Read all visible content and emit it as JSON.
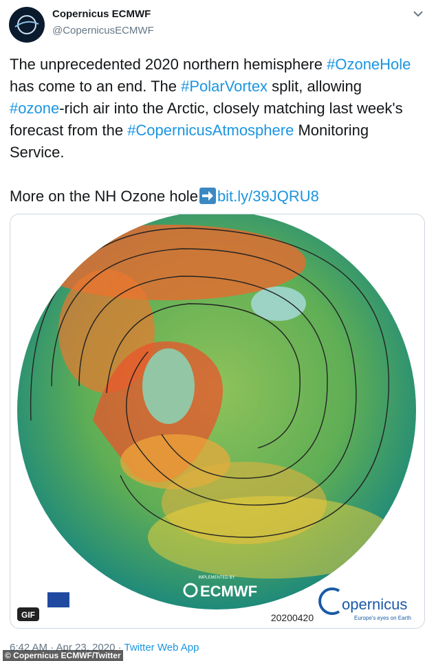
{
  "author": {
    "name": "Copernicus ECMWF",
    "handle": "@CopernicusECMWF"
  },
  "tweet": {
    "segments": [
      {
        "text": "The unprecedented 2020 northern hemisphere ",
        "link": false
      },
      {
        "text": "#OzoneHole",
        "link": true
      },
      {
        "text": " has come to an end. The ",
        "link": false
      },
      {
        "text": "#PolarVortex",
        "link": true
      },
      {
        "text": " split, allowing ",
        "link": false
      },
      {
        "text": "#ozone",
        "link": true
      },
      {
        "text": "-rich air into the Arctic, closely matching last week's forecast from the ",
        "link": false
      },
      {
        "text": "#CopernicusAtmosphere",
        "link": true
      },
      {
        "text": " Monitoring Service.",
        "link": false
      }
    ],
    "more": {
      "text": "More on the NH Ozone hole",
      "link": "bit.ly/39JQRU8"
    }
  },
  "media": {
    "badge": "GIF",
    "implemented": "IMPLEMENTED BY",
    "ecmwf": "ECMWF",
    "copernicus": "opernicus",
    "tagline": "Europe's eyes on Earth",
    "date": "20200420"
  },
  "meta": {
    "time": "6:42 AM · Apr 23, 2020 · ",
    "source": "Twitter Web App"
  },
  "watermark": "© Copernicus ECMWF/Twitter"
}
